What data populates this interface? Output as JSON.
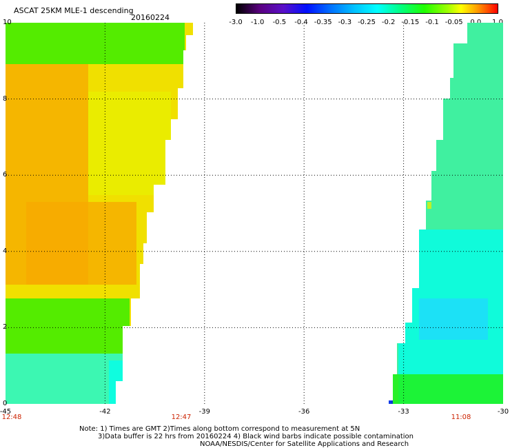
{
  "header": {
    "title": "ASCAT 25KM MLE-1 descending",
    "date": "20160224"
  },
  "colorbar": {
    "labels": [
      "-3.0",
      "-1.0",
      "-0.5",
      "-0.4",
      "-0.35",
      "-0.3",
      "-0.25",
      "-0.2",
      "-0.15",
      "-0.1",
      "-0.05",
      "0.0",
      "1.0"
    ]
  },
  "axes": {
    "x_ticks": [
      "-45",
      "-42",
      "-39",
      "-36",
      "-33",
      "-30"
    ],
    "y_ticks": [
      "0",
      "2",
      "4",
      "6",
      "8",
      "10"
    ],
    "times": [
      "12:48",
      "12:47",
      "11:08"
    ]
  },
  "notes": {
    "line1": "Note: 1) Times are GMT 2)Times along bottom correspond to measurement at 5N",
    "line2": "3)Data buffer is 22 hrs from 20160224 4) Black wind barbs indicate possible contamination",
    "line3": "NOAA/NESDIS/Center for Satellite Applications and Research"
  },
  "colors": {
    "orange": "#f7a800",
    "yellow": "#e8f000",
    "green": "#20f000",
    "cyan": "#00ffee",
    "blue": "#0000ff",
    "time_label": "#cc2200"
  }
}
